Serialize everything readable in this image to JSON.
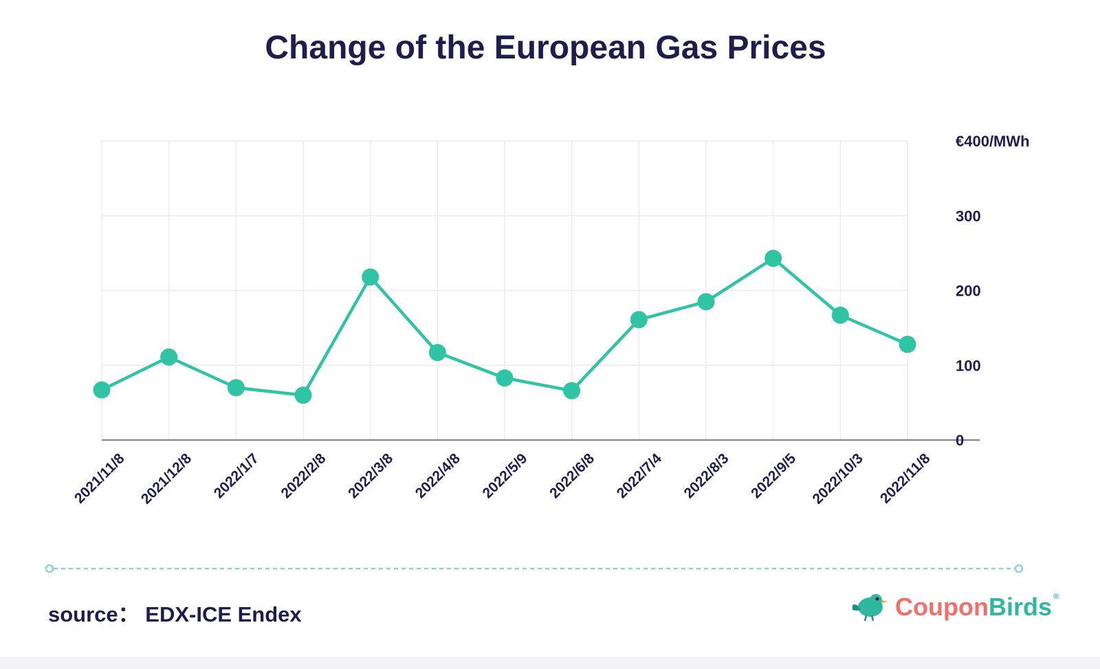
{
  "title": "Change of the European Gas Prices",
  "source": "source： EDX-ICE Endex",
  "logo": {
    "part1": "Coupon",
    "part2": "Birds",
    "registered": "®"
  },
  "colors": {
    "title": "#1f1d4d",
    "series": "#2fc4a4",
    "grid": "#ececec",
    "axis": "#8c8c8c",
    "label": "#1f1d4d",
    "dashed": "#8fd3cc",
    "logo_coupon": "#f2706a",
    "logo_birds": "#2fb8a0",
    "bird": "#2fb8a0"
  },
  "chart_data": {
    "type": "line",
    "title": "Change of the European Gas Prices",
    "x": [
      "2021/11/8",
      "2021/12/8",
      "2022/1/7",
      "2022/2/8",
      "2022/3/8",
      "2022/4/8",
      "2022/5/9",
      "2022/6/8",
      "2022/7/4",
      "2022/8/3",
      "2022/9/5",
      "2022/10/3",
      "2022/11/8"
    ],
    "series": [
      {
        "values": [
          67,
          111,
          70,
          60,
          218,
          117,
          83,
          66,
          161,
          185,
          243,
          167,
          128
        ]
      }
    ],
    "ylim": [
      0,
      400
    ],
    "y_ticks": [
      0,
      100,
      200,
      300,
      400
    ],
    "y_tick_labels": [
      "0",
      "100",
      "200",
      "300",
      "€400/MWh"
    ],
    "y_axis_side": "right",
    "grid": true,
    "markers": true
  }
}
